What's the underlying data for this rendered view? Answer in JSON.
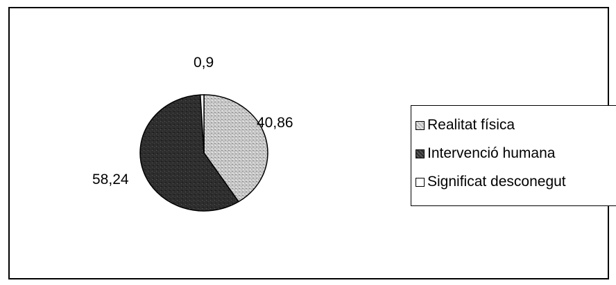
{
  "chart_data": {
    "type": "pie",
    "title": "",
    "categories": [
      "Realitat física",
      "Intervenció humana",
      "Significat desconegut"
    ],
    "values": [
      40.86,
      58.24,
      0.9
    ],
    "data_labels": [
      "40,86",
      "58,24",
      "0,9"
    ],
    "colors": [
      "#c4c4c4",
      "#333333",
      "#ffffff"
    ],
    "legend_placement": "right"
  }
}
